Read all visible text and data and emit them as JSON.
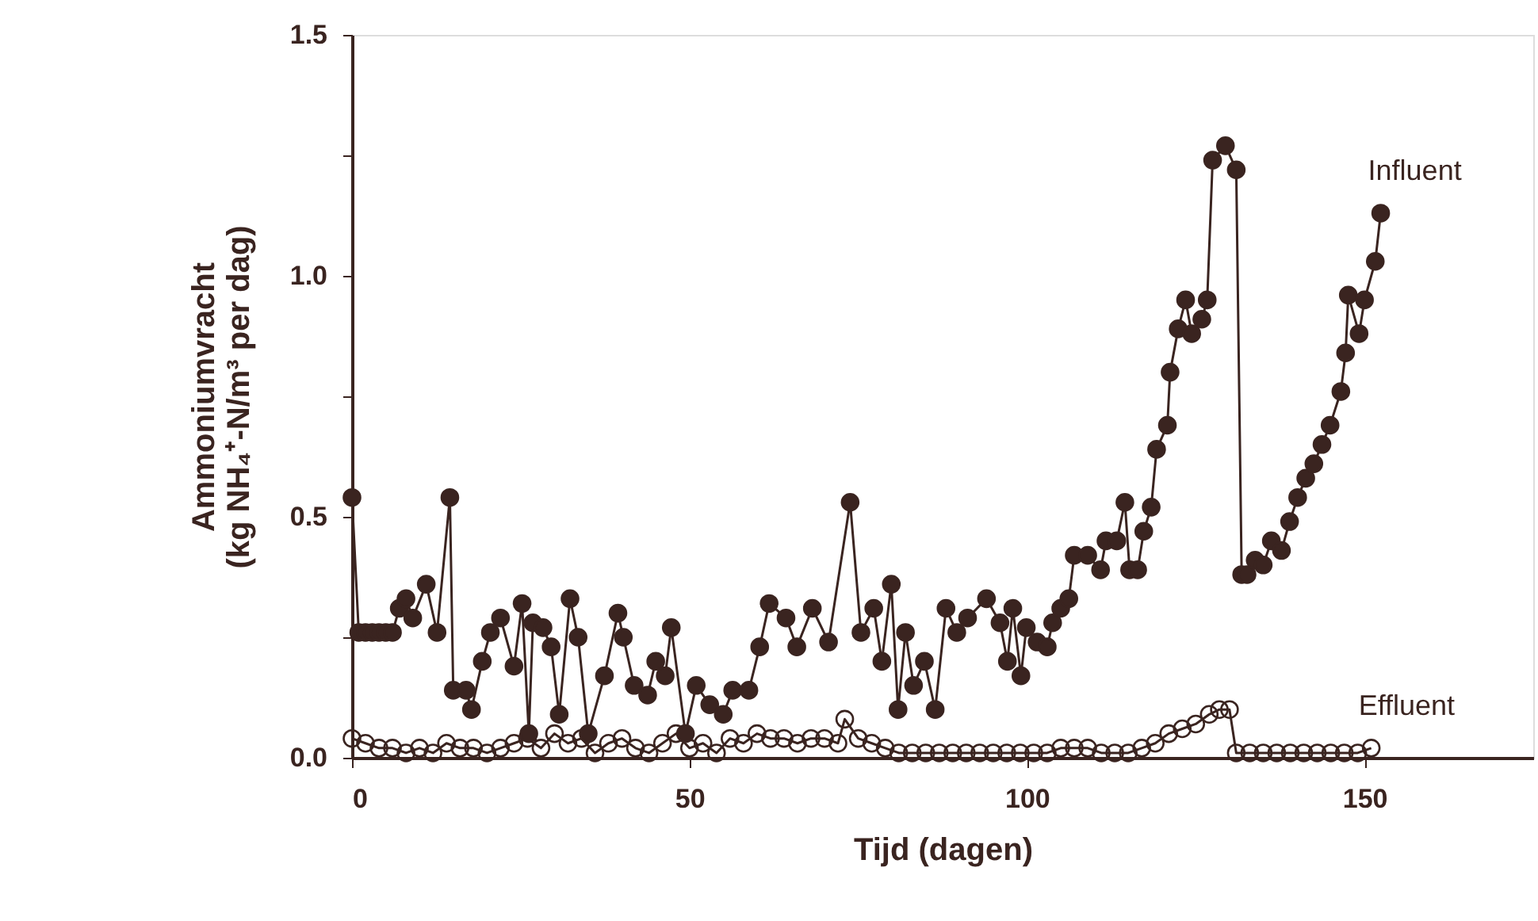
{
  "chart_data": {
    "type": "line",
    "xlabel": "Tijd  (dagen)",
    "ylabel": "Ammoniumvracht\n(kg NH₄⁺-N/m³ per dag)",
    "xlim": [
      0,
      175
    ],
    "xticks": [
      0,
      50,
      100,
      150
    ],
    "ylim": [
      0,
      1.5
    ],
    "yticks": [
      {
        "value": 0,
        "label": "0.0"
      },
      {
        "value": 0.25,
        "label": null
      },
      {
        "value": 0.5,
        "label": "0.5"
      },
      {
        "value": 0.75,
        "label": null
      },
      {
        "value": 1.0,
        "label": "1.0"
      },
      {
        "value": 1.25,
        "label": null
      },
      {
        "value": 1.5,
        "label": "1.5"
      }
    ],
    "marker": "circle",
    "line_style": "solid",
    "grid": false,
    "series": [
      {
        "name": "Influent",
        "color": "#3a2420",
        "x": [
          0,
          1,
          2,
          3,
          4,
          5,
          6,
          7,
          8,
          9,
          11,
          12.6,
          14.5,
          15,
          16.9,
          17.7,
          19.3,
          20.5,
          22,
          24,
          25.2,
          26.2,
          26.8,
          28.3,
          29.5,
          30.7,
          32.3,
          33.5,
          35,
          37.4,
          39.4,
          40.2,
          41.8,
          43.8,
          45,
          46.4,
          47.3,
          49.4,
          51,
          53,
          55,
          56.4,
          58.8,
          60.4,
          61.8,
          64.3,
          65.9,
          68.2,
          70.6,
          73.8,
          75.4,
          77.3,
          78.5,
          79.9,
          80.9,
          82,
          83.2,
          84.8,
          86.4,
          88,
          89.6,
          91.2,
          94,
          96,
          97.1,
          97.9,
          99.1,
          99.9,
          101.5,
          103,
          103.8,
          105,
          106.2,
          107,
          109,
          110.9,
          111.7,
          113.3,
          114.5,
          115.2,
          116.4,
          117.3,
          118.4,
          119.2,
          120.8,
          121.2,
          122.4,
          123.5,
          124.4,
          125.9,
          126.7,
          127.5,
          129.4,
          131,
          131.8,
          132.6,
          133.8,
          135,
          136.2,
          137.7,
          138.9,
          140.1,
          141.3,
          142.5,
          143.7,
          144.9,
          146.5,
          147.2,
          147.6,
          149.2,
          150,
          151.6,
          152.4
        ],
        "values": [
          0.54,
          0.26,
          0.26,
          0.26,
          0.26,
          0.26,
          0.26,
          0.31,
          0.33,
          0.29,
          0.36,
          0.26,
          0.54,
          0.14,
          0.14,
          0.1,
          0.2,
          0.26,
          0.29,
          0.19,
          0.32,
          0.05,
          0.28,
          0.27,
          0.23,
          0.09,
          0.33,
          0.25,
          0.05,
          0.17,
          0.3,
          0.25,
          0.15,
          0.13,
          0.2,
          0.17,
          0.27,
          0.05,
          0.15,
          0.11,
          0.09,
          0.14,
          0.14,
          0.23,
          0.32,
          0.29,
          0.23,
          0.31,
          0.24,
          0.53,
          0.26,
          0.31,
          0.2,
          0.36,
          0.1,
          0.26,
          0.15,
          0.2,
          0.1,
          0.31,
          0.26,
          0.29,
          0.33,
          0.28,
          0.2,
          0.31,
          0.17,
          0.27,
          0.24,
          0.23,
          0.28,
          0.31,
          0.33,
          0.42,
          0.42,
          0.39,
          0.45,
          0.45,
          0.53,
          0.39,
          0.39,
          0.47,
          0.52,
          0.64,
          0.69,
          0.8,
          0.89,
          0.95,
          0.88,
          0.91,
          0.95,
          1.24,
          1.27,
          1.22,
          0.38,
          0.38,
          0.41,
          0.4,
          0.45,
          0.43,
          0.49,
          0.54,
          0.58,
          0.61,
          0.65,
          0.69,
          0.76,
          0.84,
          0.96,
          0.88,
          0.95,
          1.03,
          1.13
        ]
      },
      {
        "name": "Effluent",
        "color": "#3a2420",
        "x": [
          0,
          2,
          4,
          6,
          8,
          10,
          12,
          14,
          16,
          18,
          20,
          22,
          24,
          26,
          28,
          30,
          32,
          34,
          36,
          38,
          40,
          42,
          44,
          46,
          48,
          50,
          52,
          54,
          56,
          58,
          60,
          62,
          64,
          66,
          68,
          70,
          72,
          73,
          75,
          77,
          79,
          81,
          83,
          85,
          87,
          89,
          91,
          93,
          95,
          97,
          99,
          101,
          103,
          105,
          107,
          109,
          111,
          113,
          115,
          117,
          119,
          121,
          123,
          125,
          127,
          128.5,
          130,
          131,
          133,
          135,
          137,
          139,
          141,
          143,
          145,
          147,
          149,
          151
        ],
        "values": [
          0.04,
          0.03,
          0.02,
          0.02,
          0.01,
          0.02,
          0.01,
          0.03,
          0.02,
          0.02,
          0.01,
          0.02,
          0.03,
          0.04,
          0.02,
          0.05,
          0.03,
          0.04,
          0.01,
          0.03,
          0.04,
          0.02,
          0.01,
          0.03,
          0.05,
          0.02,
          0.03,
          0.01,
          0.04,
          0.03,
          0.05,
          0.04,
          0.04,
          0.03,
          0.04,
          0.04,
          0.03,
          0.08,
          0.04,
          0.03,
          0.02,
          0.01,
          0.01,
          0.01,
          0.01,
          0.01,
          0.01,
          0.01,
          0.01,
          0.01,
          0.01,
          0.01,
          0.01,
          0.02,
          0.02,
          0.02,
          0.01,
          0.01,
          0.01,
          0.02,
          0.03,
          0.05,
          0.06,
          0.07,
          0.09,
          0.1,
          0.1,
          0.01,
          0.01,
          0.01,
          0.01,
          0.01,
          0.01,
          0.01,
          0.01,
          0.01,
          0.01,
          0.02
        ]
      }
    ]
  }
}
